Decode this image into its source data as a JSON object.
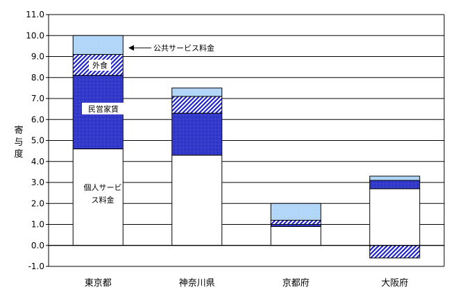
{
  "chart_data": {
    "type": "stacked-bar",
    "title": "",
    "xlabel": "",
    "ylabel": "寄与度",
    "ylim": [
      -1.0,
      11.0
    ],
    "yticks": [
      "11.0",
      "10.0",
      "9.0",
      "8.0",
      "7.0",
      "6.0",
      "5.0",
      "4.0",
      "3.0",
      "2.0",
      "1.0",
      "0.0",
      "-1.0"
    ],
    "grid": true,
    "categories": [
      "東京都",
      "神奈川県",
      "京都府",
      "大阪府"
    ],
    "series": [
      {
        "name": "個人サービス料金",
        "pattern": "white",
        "values": [
          4.6,
          4.3,
          0.9,
          2.7
        ]
      },
      {
        "name": "民営家賃",
        "pattern": "dots-blue",
        "values": [
          3.5,
          2.0,
          0.1,
          0.4
        ]
      },
      {
        "name": "外食",
        "pattern": "diagonal-blue",
        "values": [
          1.0,
          0.8,
          0.2,
          -0.6
        ]
      },
      {
        "name": "公共サービス料金",
        "pattern": "light-blue",
        "values": [
          0.9,
          0.4,
          0.8,
          0.2
        ]
      }
    ],
    "annotations": {
      "public_service": "公共サービス料金",
      "dining_out": "外食",
      "private_rent": "民営家賃",
      "personal_service_line1": "個人サービ",
      "personal_service_line2": "ス料金"
    },
    "colors": {
      "blue": "#1f24c8",
      "light_blue": "#a8d4fb",
      "white": "#ffffff",
      "axis": "#000000"
    }
  }
}
